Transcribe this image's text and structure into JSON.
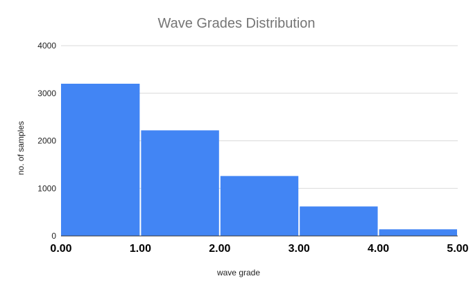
{
  "chart_data": {
    "type": "bar",
    "title": "Wave Grades Distribution",
    "xlabel": "wave grade",
    "ylabel": "no. of samples",
    "bins": [
      {
        "from": 0,
        "to": 1,
        "value": 3200
      },
      {
        "from": 1,
        "to": 2,
        "value": 2220
      },
      {
        "from": 2,
        "to": 3,
        "value": 1260
      },
      {
        "from": 3,
        "to": 4,
        "value": 620
      },
      {
        "from": 4,
        "to": 5,
        "value": 140
      }
    ],
    "values": [
      3200,
      2220,
      1260,
      620,
      140
    ],
    "xticks": [
      "0.00",
      "1.00",
      "2.00",
      "3.00",
      "4.00",
      "5.00"
    ],
    "yticks": [
      "0",
      "1000",
      "2000",
      "3000",
      "4000"
    ],
    "xlim": [
      0,
      5
    ],
    "ylim": [
      0,
      4000
    ],
    "grid": true,
    "legend": "none",
    "bar_color": "#4285f4"
  }
}
